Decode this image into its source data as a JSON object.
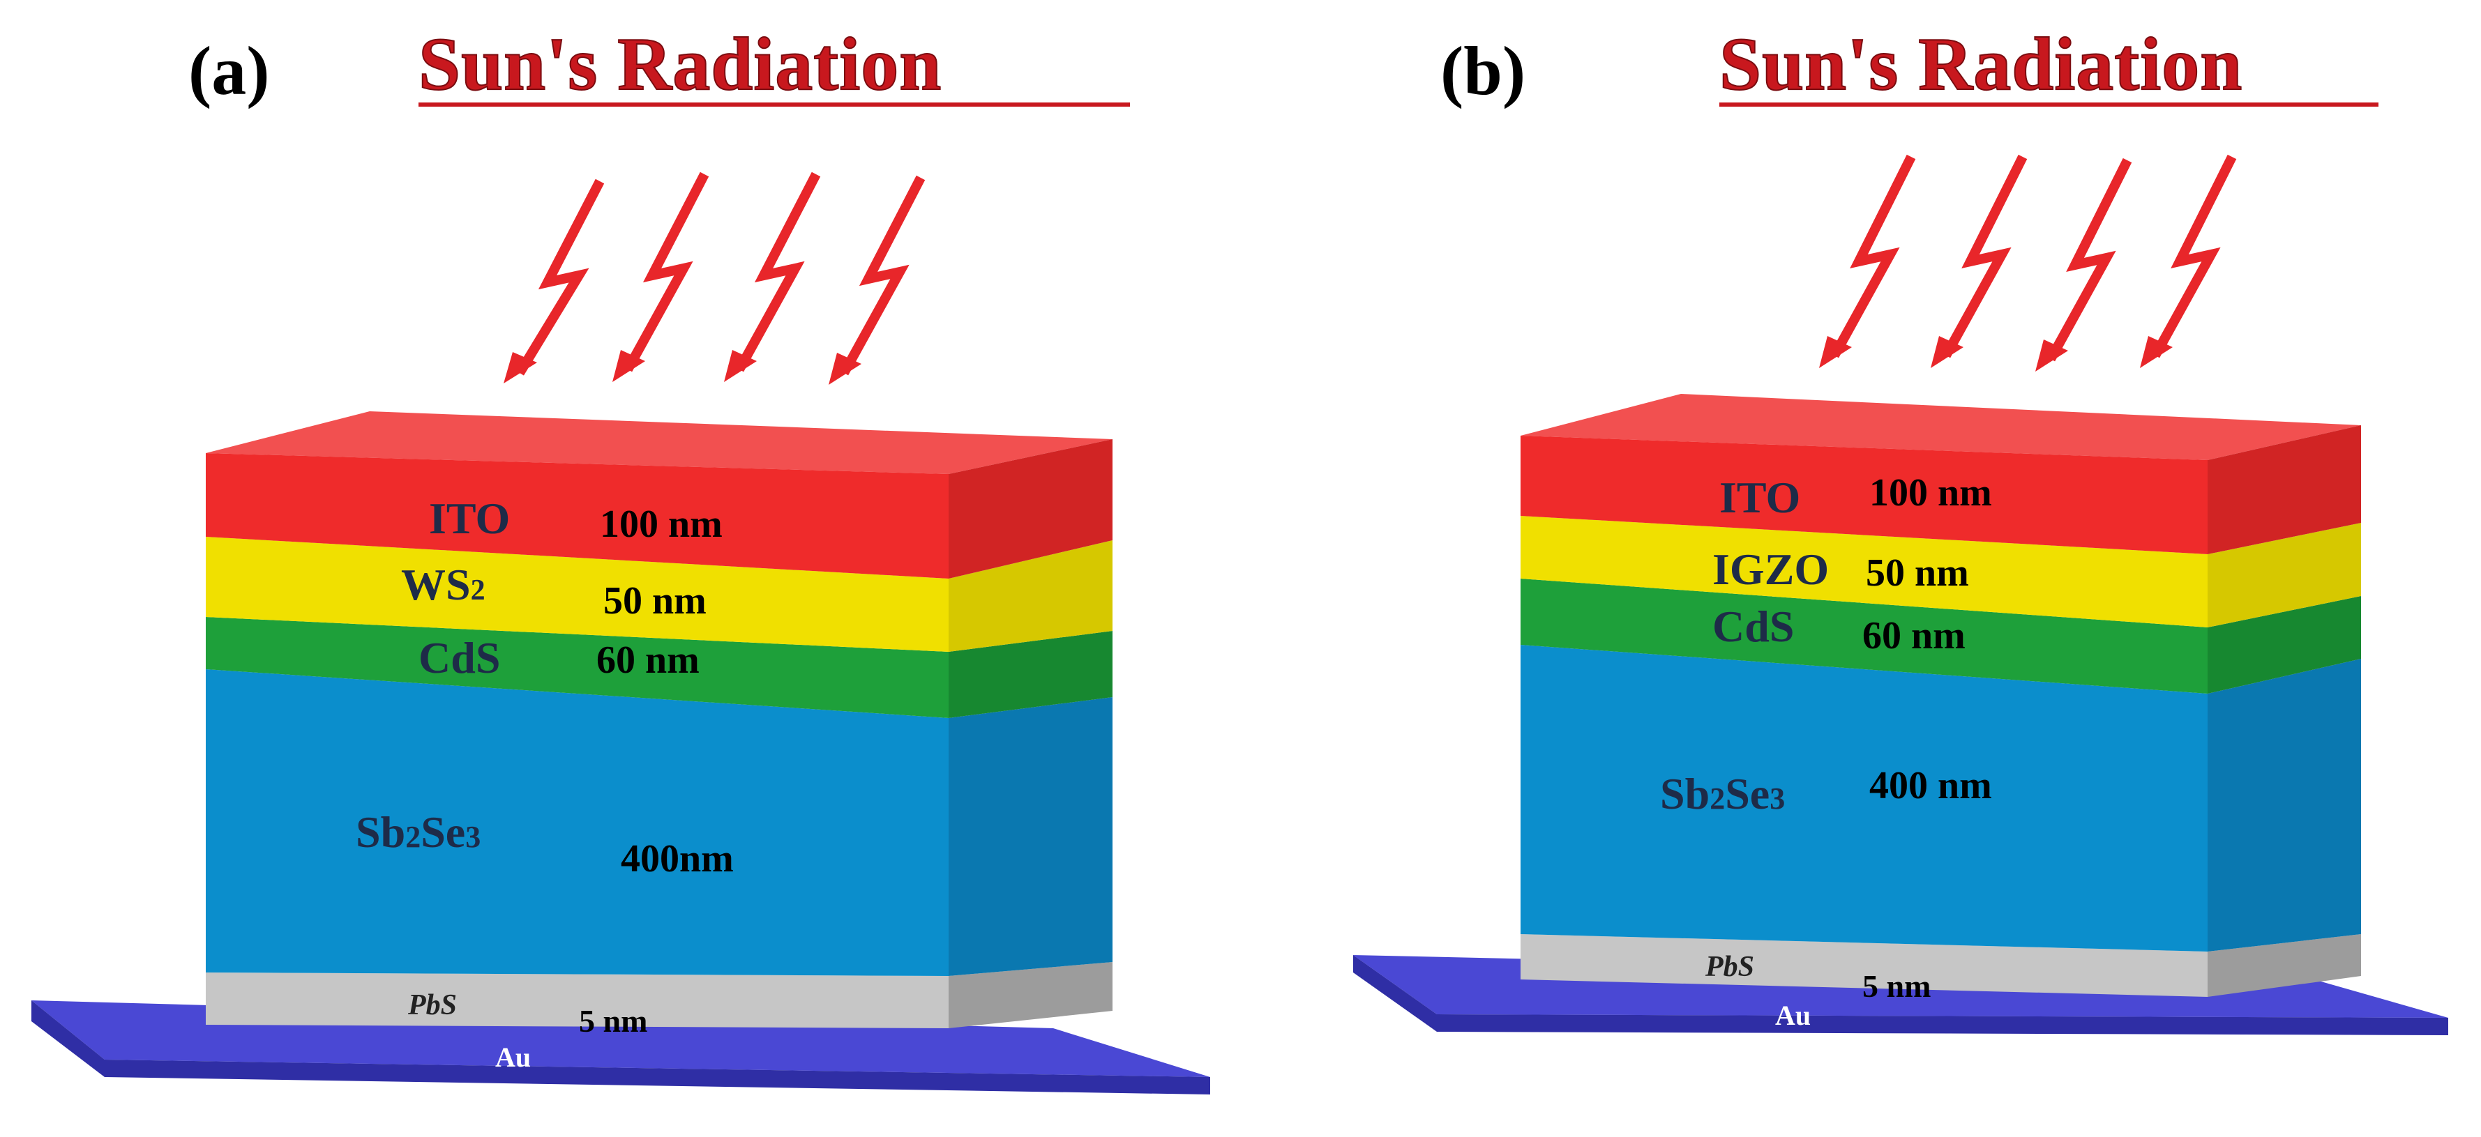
{
  "panels": [
    {
      "label": "(a)",
      "title": "Sun's Radiation",
      "layers": {
        "ito": {
          "name": "ITO",
          "thickness": "100 nm"
        },
        "etl": {
          "name_base": "WS",
          "name_sub": "2",
          "thickness": "50 nm"
        },
        "cds": {
          "name": "CdS",
          "thickness": "60 nm"
        },
        "absorber": {
          "p1": "Sb",
          "s1": "2",
          "p2": "Se",
          "s2": "3",
          "thickness": "400nm"
        },
        "htl": {
          "name": "PbS",
          "thickness": "5 nm"
        },
        "contact": {
          "name": "Au"
        }
      }
    },
    {
      "label": "(b)",
      "title": "Sun's Radiation",
      "layers": {
        "ito": {
          "name": "ITO",
          "thickness": "100 nm"
        },
        "etl": {
          "name": "IGZO",
          "thickness": "50 nm"
        },
        "cds": {
          "name": "CdS",
          "thickness": "60 nm"
        },
        "absorber": {
          "p1": "Sb",
          "s1": "2",
          "p2": "Se",
          "s2": "3",
          "thickness": "400 nm"
        },
        "htl": {
          "name": "PbS",
          "thickness": "5 nm"
        },
        "contact": {
          "name": "Au"
        }
      }
    }
  ],
  "colors": {
    "ito": "#ef2b2b",
    "etl": "#f0e000",
    "cds": "#1ea03a",
    "absorber": "#0b8ecc",
    "htl": "#c6c6c6",
    "contact": "#4a48d4",
    "arrow": "#e8262a"
  }
}
